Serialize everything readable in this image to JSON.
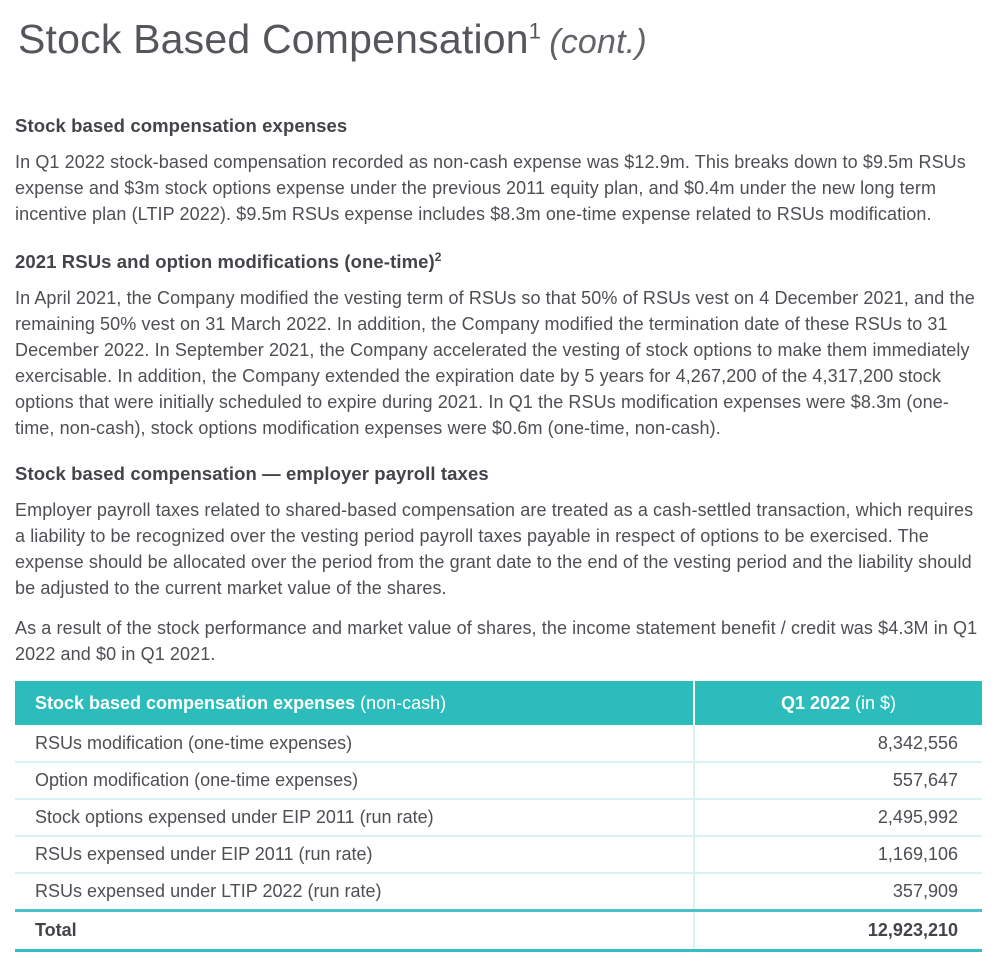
{
  "page": {
    "title": "Stock Based Compensation",
    "title_superscript": "1",
    "title_suffix": "(cont.)"
  },
  "sections": [
    {
      "heading": "Stock based compensation expenses",
      "paragraphs": [
        "In Q1 2022 stock-based compensation recorded as non-cash expense was $12.9m. This breaks down to $9.5m RSUs expense and $3m stock options expense under the previous 2011 equity plan, and $0.4m under the new long term incentive plan (LTIP 2022). $9.5m RSUs expense includes $8.3m one-time expense related to RSUs modification."
      ]
    },
    {
      "heading": "2021 RSUs and option modifications (one-time)",
      "heading_superscript": "2",
      "paragraphs": [
        "In April 2021, the Company modified the vesting term of RSUs so that 50% of RSUs vest on 4 December 2021, and the remaining 50% vest on 31 March 2022. In addition, the Company modified the termination date of these RSUs to 31 December 2022. In September 2021, the Company accelerated the vesting of stock options to make them immediately exercisable. In addition, the Company extended the expiration date by 5 years for 4,267,200 of the 4,317,200 stock options that were initially scheduled to expire during 2021. In Q1 the RSUs modification expenses were $8.3m (one-time, non-cash), stock options modification expenses were $0.6m (one-time, non-cash)."
      ]
    },
    {
      "heading": "Stock based compensation — employer payroll taxes",
      "paragraphs": [
        "Employer payroll taxes related to shared-based compensation are treated as a cash-settled transaction, which requires a liability to be recognized over the vesting period payroll taxes payable in respect of options to be exercised. The expense should be allocated over the period from the grant date to the end of the vesting period and the liability should be adjusted to the current market value of the shares.",
        "As a result of the stock performance and market value of shares, the income statement benefit / credit was $4.3M in Q1 2022 and $0 in Q1 2021."
      ]
    }
  ],
  "table": {
    "header": {
      "col1_bold": "Stock based compensation expenses",
      "col1_normal": "(non-cash)",
      "col2_bold": "Q1 2022",
      "col2_normal": "(in $)"
    },
    "rows": [
      {
        "label": "RSUs modification (one-time expenses)",
        "value": "8,342,556"
      },
      {
        "label": "Option modification (one-time expenses)",
        "value": "557,647"
      },
      {
        "label": "Stock options expensed under EIP 2011 (run rate)",
        "value": "2,495,992"
      },
      {
        "label": "RSUs expensed under EIP 2011 (run rate)",
        "value": "1,169,106"
      },
      {
        "label": "RSUs expensed under LTIP 2022 (run rate)",
        "value": "357,909"
      }
    ],
    "total": {
      "label": "Total",
      "value": "12,923,210"
    }
  },
  "colors": {
    "accent_teal": "#2dbcbc",
    "divider_light": "#d8f2f4",
    "total_border": "#35bec0",
    "heading_text": "#43444a",
    "body_text": "#4e4f54"
  }
}
